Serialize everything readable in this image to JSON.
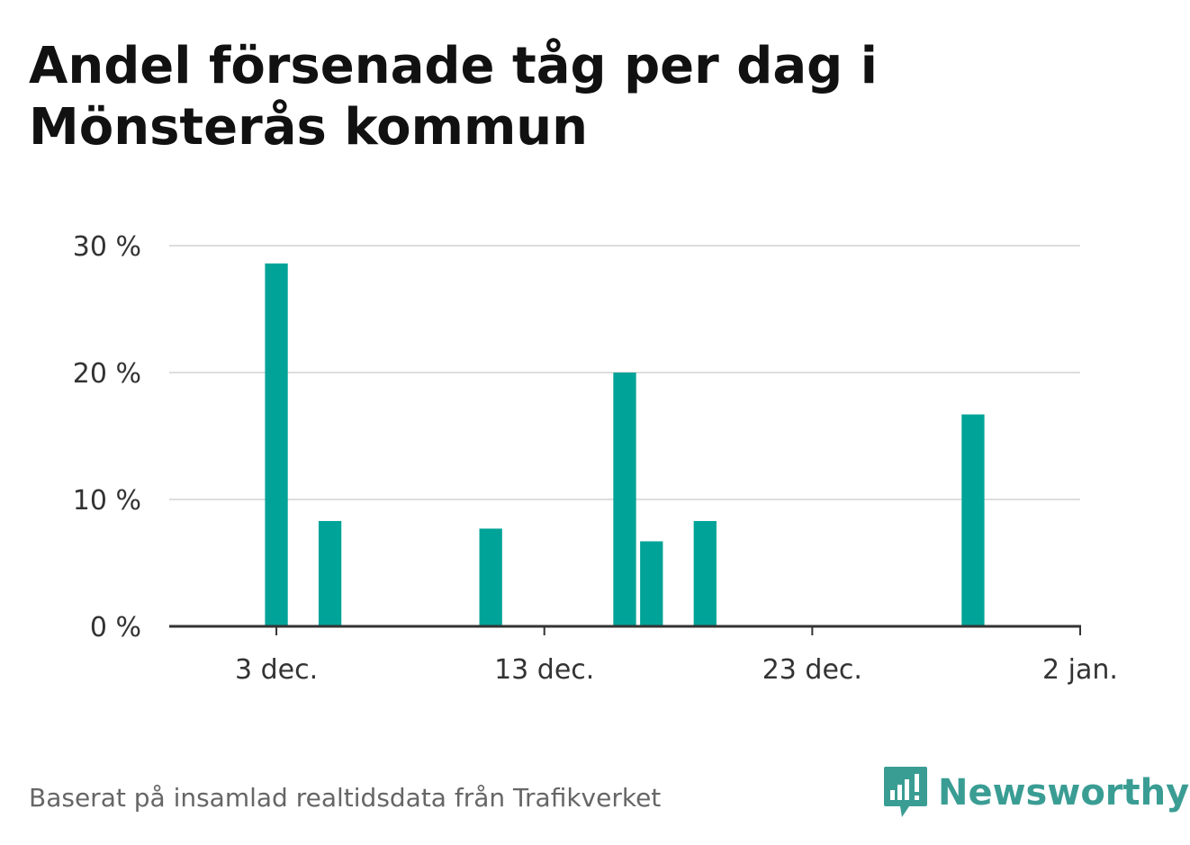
{
  "header": {
    "title_line1": "Andel försenade tåg per dag i",
    "title_line2": "Mönsterås kommun"
  },
  "footer": {
    "source": "Baserat på insamlad realtidsdata från Trafikverket",
    "brand": "Newsworthy",
    "brand_icon": "bar-chart-speech-bubble-icon"
  },
  "colors": {
    "bar": "#00a398",
    "grid": "#dddddd",
    "axis": "#333333",
    "brand": "#3a9d94"
  },
  "chart_data": {
    "type": "bar",
    "title": "Andel försenade tåg per dag i Mönsterås kommun",
    "xlabel": "",
    "ylabel": "",
    "x_axis": {
      "type": "date",
      "range": [
        "2019-11-29",
        "2020-01-02"
      ],
      "ticks": [
        "3 dec.",
        "13 dec.",
        "23 dec.",
        "2 jan."
      ]
    },
    "y_axis": {
      "range": [
        0,
        30
      ],
      "ticks": [
        0,
        10,
        20,
        30
      ],
      "tick_labels": [
        "0 %",
        "10 %",
        "20 %",
        "30 %"
      ],
      "unit": "%"
    },
    "grid": true,
    "legend": "none",
    "series": [
      {
        "x": [
          "2019-12-03",
          "2019-12-05",
          "2019-12-11",
          "2019-12-16",
          "2019-12-17",
          "2019-12-19",
          "2019-12-29"
        ],
        "values": [
          28.6,
          8.3,
          7.7,
          20.0,
          6.7,
          8.3,
          16.7
        ]
      }
    ]
  }
}
